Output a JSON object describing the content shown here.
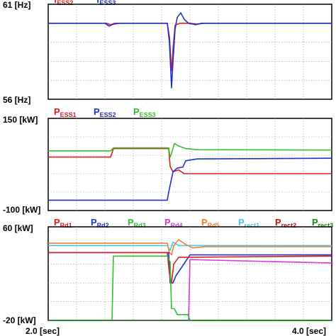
{
  "chart_data": [
    {
      "type": "line",
      "ytop_label": "61 [Hz]",
      "ybot_label": "56 [Hz]",
      "ylim": [
        56,
        61
      ],
      "xlim": [
        2.0,
        4.0
      ],
      "grid": true,
      "legend": [
        {
          "main": "f",
          "sub": "ESS2",
          "color": "#d62020"
        },
        {
          "main": "f",
          "sub": "ESS3",
          "color": "#2030d0"
        }
      ],
      "series": [
        {
          "color": "#d62020",
          "points": [
            [
              2.0,
              60.0
            ],
            [
              2.41,
              60.0
            ],
            [
              2.44,
              59.92
            ],
            [
              2.47,
              60.0
            ],
            [
              2.84,
              60.0
            ],
            [
              2.855,
              59.3
            ],
            [
              2.87,
              57.5
            ],
            [
              2.882,
              58.8
            ],
            [
              2.895,
              59.9
            ],
            [
              2.93,
              60.0
            ],
            [
              3.0,
              60.0
            ],
            [
              3.05,
              59.95
            ],
            [
              3.1,
              60.0
            ],
            [
              4.0,
              60.0
            ]
          ]
        },
        {
          "color": "#2030d0",
          "points": [
            [
              2.0,
              60.0
            ],
            [
              2.4,
              60.0
            ],
            [
              2.43,
              59.85
            ],
            [
              2.46,
              59.95
            ],
            [
              2.5,
              60.0
            ],
            [
              2.84,
              60.0
            ],
            [
              2.855,
              59.0
            ],
            [
              2.87,
              56.6
            ],
            [
              2.882,
              58.2
            ],
            [
              2.895,
              59.7
            ],
            [
              2.91,
              60.3
            ],
            [
              2.935,
              60.55
            ],
            [
              2.96,
              60.2
            ],
            [
              2.99,
              60.0
            ],
            [
              3.04,
              59.92
            ],
            [
              3.08,
              60.0
            ],
            [
              4.0,
              60.0
            ]
          ]
        }
      ]
    },
    {
      "type": "line",
      "ytop_label": "150 [kW]",
      "ybot_label": "-100 [kW]",
      "ylim": [
        -100,
        150
      ],
      "xlim": [
        2.0,
        4.0
      ],
      "grid": true,
      "legend": [
        {
          "main": "P",
          "sub": "ESS1",
          "color": "#d62020"
        },
        {
          "main": "P",
          "sub": "ESS2",
          "color": "#2030d0"
        },
        {
          "main": "P",
          "sub": "ESS3",
          "color": "#30c030"
        }
      ],
      "series": [
        {
          "color": "#d62020",
          "points": [
            [
              2.0,
              45
            ],
            [
              2.44,
              45
            ],
            [
              2.46,
              68
            ],
            [
              2.85,
              68
            ],
            [
              2.86,
              20
            ],
            [
              2.88,
              5
            ],
            [
              2.92,
              10
            ],
            [
              2.96,
              0
            ],
            [
              4.0,
              0
            ]
          ]
        },
        {
          "color": "#2030d0",
          "points": [
            [
              2.0,
              -72
            ],
            [
              2.84,
              -72
            ],
            [
              2.85,
              -50
            ],
            [
              2.88,
              5
            ],
            [
              2.91,
              15
            ],
            [
              2.95,
              18
            ],
            [
              2.97,
              35
            ],
            [
              3.05,
              40
            ],
            [
              4.0,
              42
            ]
          ]
        },
        {
          "color": "#30c030",
          "points": [
            [
              2.0,
              62
            ],
            [
              2.44,
              62
            ],
            [
              2.46,
              70
            ],
            [
              2.85,
              70
            ],
            [
              2.86,
              45
            ],
            [
              2.87,
              55
            ],
            [
              2.89,
              82
            ],
            [
              2.92,
              75
            ],
            [
              2.97,
              68
            ],
            [
              3.05,
              65
            ],
            [
              4.0,
              64
            ]
          ]
        }
      ]
    },
    {
      "type": "line",
      "ytop_label": "60 [kW]",
      "ybot_label": "-20 [kW]",
      "ylim": [
        -20,
        60
      ],
      "xlim": [
        2.0,
        4.0
      ],
      "xtick_labels": [
        "2.0 [sec]",
        "4.0 [sec]"
      ],
      "grid": true,
      "legend": [
        {
          "main": "P",
          "sub": "Rd1",
          "color": "#d62020"
        },
        {
          "main": "P",
          "sub": "Rd2",
          "color": "#2030d0"
        },
        {
          "main": "P",
          "sub": "Rd3",
          "color": "#30c030"
        },
        {
          "main": "P",
          "sub": "Rd4",
          "color": "#d040d0"
        },
        {
          "main": "P",
          "sub": "Rd5",
          "color": "#f08030"
        },
        {
          "main": "P",
          "sub": "rect1",
          "color": "#40c8e8"
        },
        {
          "main": "P",
          "sub": "rect2",
          "color": "#c01818"
        },
        {
          "main": "P",
          "sub": "rect3",
          "color": "#108a10"
        }
      ],
      "series": [
        {
          "color": "#40c8e8",
          "points": [
            [
              2.0,
              44
            ],
            [
              2.84,
              44
            ],
            [
              2.86,
              40
            ],
            [
              2.88,
              47
            ],
            [
              2.92,
              44
            ],
            [
              4.0,
              44
            ]
          ]
        },
        {
          "color": "#f08030",
          "points": [
            [
              2.0,
              46
            ],
            [
              2.84,
              46
            ],
            [
              2.855,
              38
            ],
            [
              2.87,
              36
            ],
            [
              2.885,
              44
            ],
            [
              2.92,
              49
            ],
            [
              2.97,
              45
            ],
            [
              3.02,
              42
            ],
            [
              3.1,
              43
            ],
            [
              4.0,
              43
            ]
          ]
        },
        {
          "color": "#2030d0",
          "points": [
            [
              2.0,
              38
            ],
            [
              2.85,
              38
            ],
            [
              2.86,
              12
            ],
            [
              2.88,
              12
            ],
            [
              2.9,
              18
            ],
            [
              3.0,
              36
            ],
            [
              4.0,
              36
            ]
          ]
        },
        {
          "color": "#d62020",
          "points": [
            [
              2.0,
              38
            ],
            [
              2.84,
              38
            ],
            [
              2.855,
              20
            ],
            [
              2.87,
              12
            ],
            [
              2.885,
              28
            ],
            [
              2.92,
              34
            ],
            [
              2.97,
              34
            ],
            [
              4.0,
              35
            ]
          ]
        },
        {
          "color": "#d040d0",
          "points": [
            [
              2.0,
              -20
            ],
            [
              2.99,
              -20
            ],
            [
              3.0,
              32
            ],
            [
              4.0,
              29
            ]
          ]
        },
        {
          "color": "#30c030",
          "points": [
            [
              2.0,
              -20
            ],
            [
              2.45,
              -20
            ],
            [
              2.46,
              35
            ],
            [
              2.84,
              35
            ],
            [
              2.86,
              30
            ],
            [
              2.87,
              -10
            ],
            [
              2.89,
              -10
            ],
            [
              2.91,
              -15
            ],
            [
              2.95,
              -15
            ],
            [
              2.985,
              -15
            ],
            [
              3.0,
              -20
            ],
            [
              4.0,
              -20
            ]
          ]
        },
        {
          "color": "#108a10",
          "points": [
            [
              2.0,
              -20
            ],
            [
              4.0,
              -20
            ]
          ]
        }
      ]
    }
  ]
}
